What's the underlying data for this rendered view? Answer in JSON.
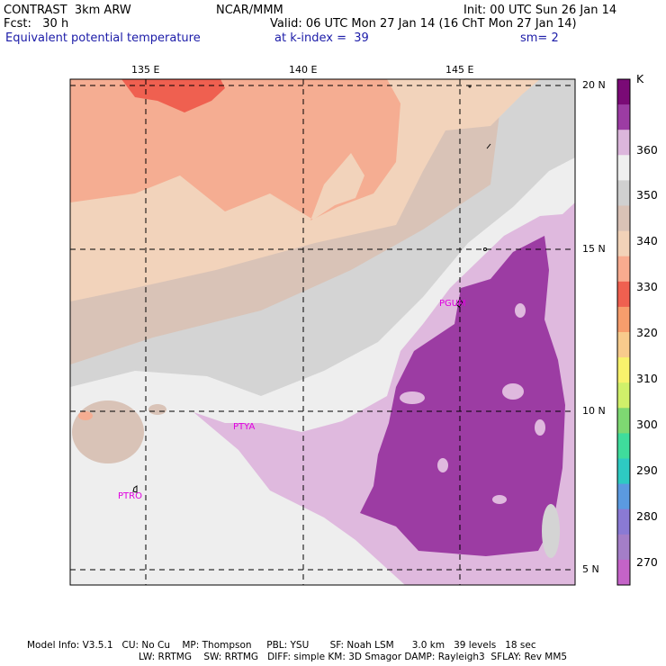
{
  "header": {
    "line1_left": "CONTRAST  3km ARW",
    "line1_mid": "NCAR/MMM",
    "line1_right": "Init: 00 UTC Sun 26 Jan 14",
    "line2_left": "Fcst:   30 h",
    "line2_right": "Valid: 06 UTC Mon 27 Jan 14 (16 ChT Mon 27 Jan 14)",
    "line3_left": "Equivalent potential temperature",
    "line3_mid": "at k-index =  39",
    "line3_right": "sm= 2"
  },
  "map": {
    "lon_labels": [
      "135 E",
      "140 E",
      "145 E"
    ],
    "lat_labels": [
      "20 N",
      "15 N",
      "10 N",
      "5 N"
    ],
    "stations": [
      "PGUM",
      "PTYA",
      "PTRO"
    ]
  },
  "colorbar": {
    "unit": "K",
    "labels": [
      "360",
      "350",
      "340",
      "330",
      "320",
      "310",
      "300",
      "290",
      "280",
      "270"
    ],
    "colors": [
      "#7a0a76",
      "#9c3ca3",
      "#dcb6dc",
      "#efefef",
      "#d0d0d0",
      "#d9c2b6",
      "#f2d2b8",
      "#f8ab8f",
      "#ef6050",
      "#f79d6c",
      "#f8cb8c",
      "#f8f26c",
      "#d0f06a",
      "#7ed872",
      "#3fdc9c",
      "#2ecac2",
      "#5b9ae0",
      "#8a7ad4",
      "#a47ec8",
      "#c463c8"
    ]
  },
  "footer": {
    "line1": "Model Info: V3.5.1   CU: No Cu    MP: Thompson     PBL: YSU       SF: Noah LSM      3.0 km   39 levels   18 sec",
    "line2": "LW: RRTMG    SW: RRTMG   DIFF: simple KM: 3D Smagor DAMP: Rayleigh3  SFLAY: Rev MM5"
  }
}
